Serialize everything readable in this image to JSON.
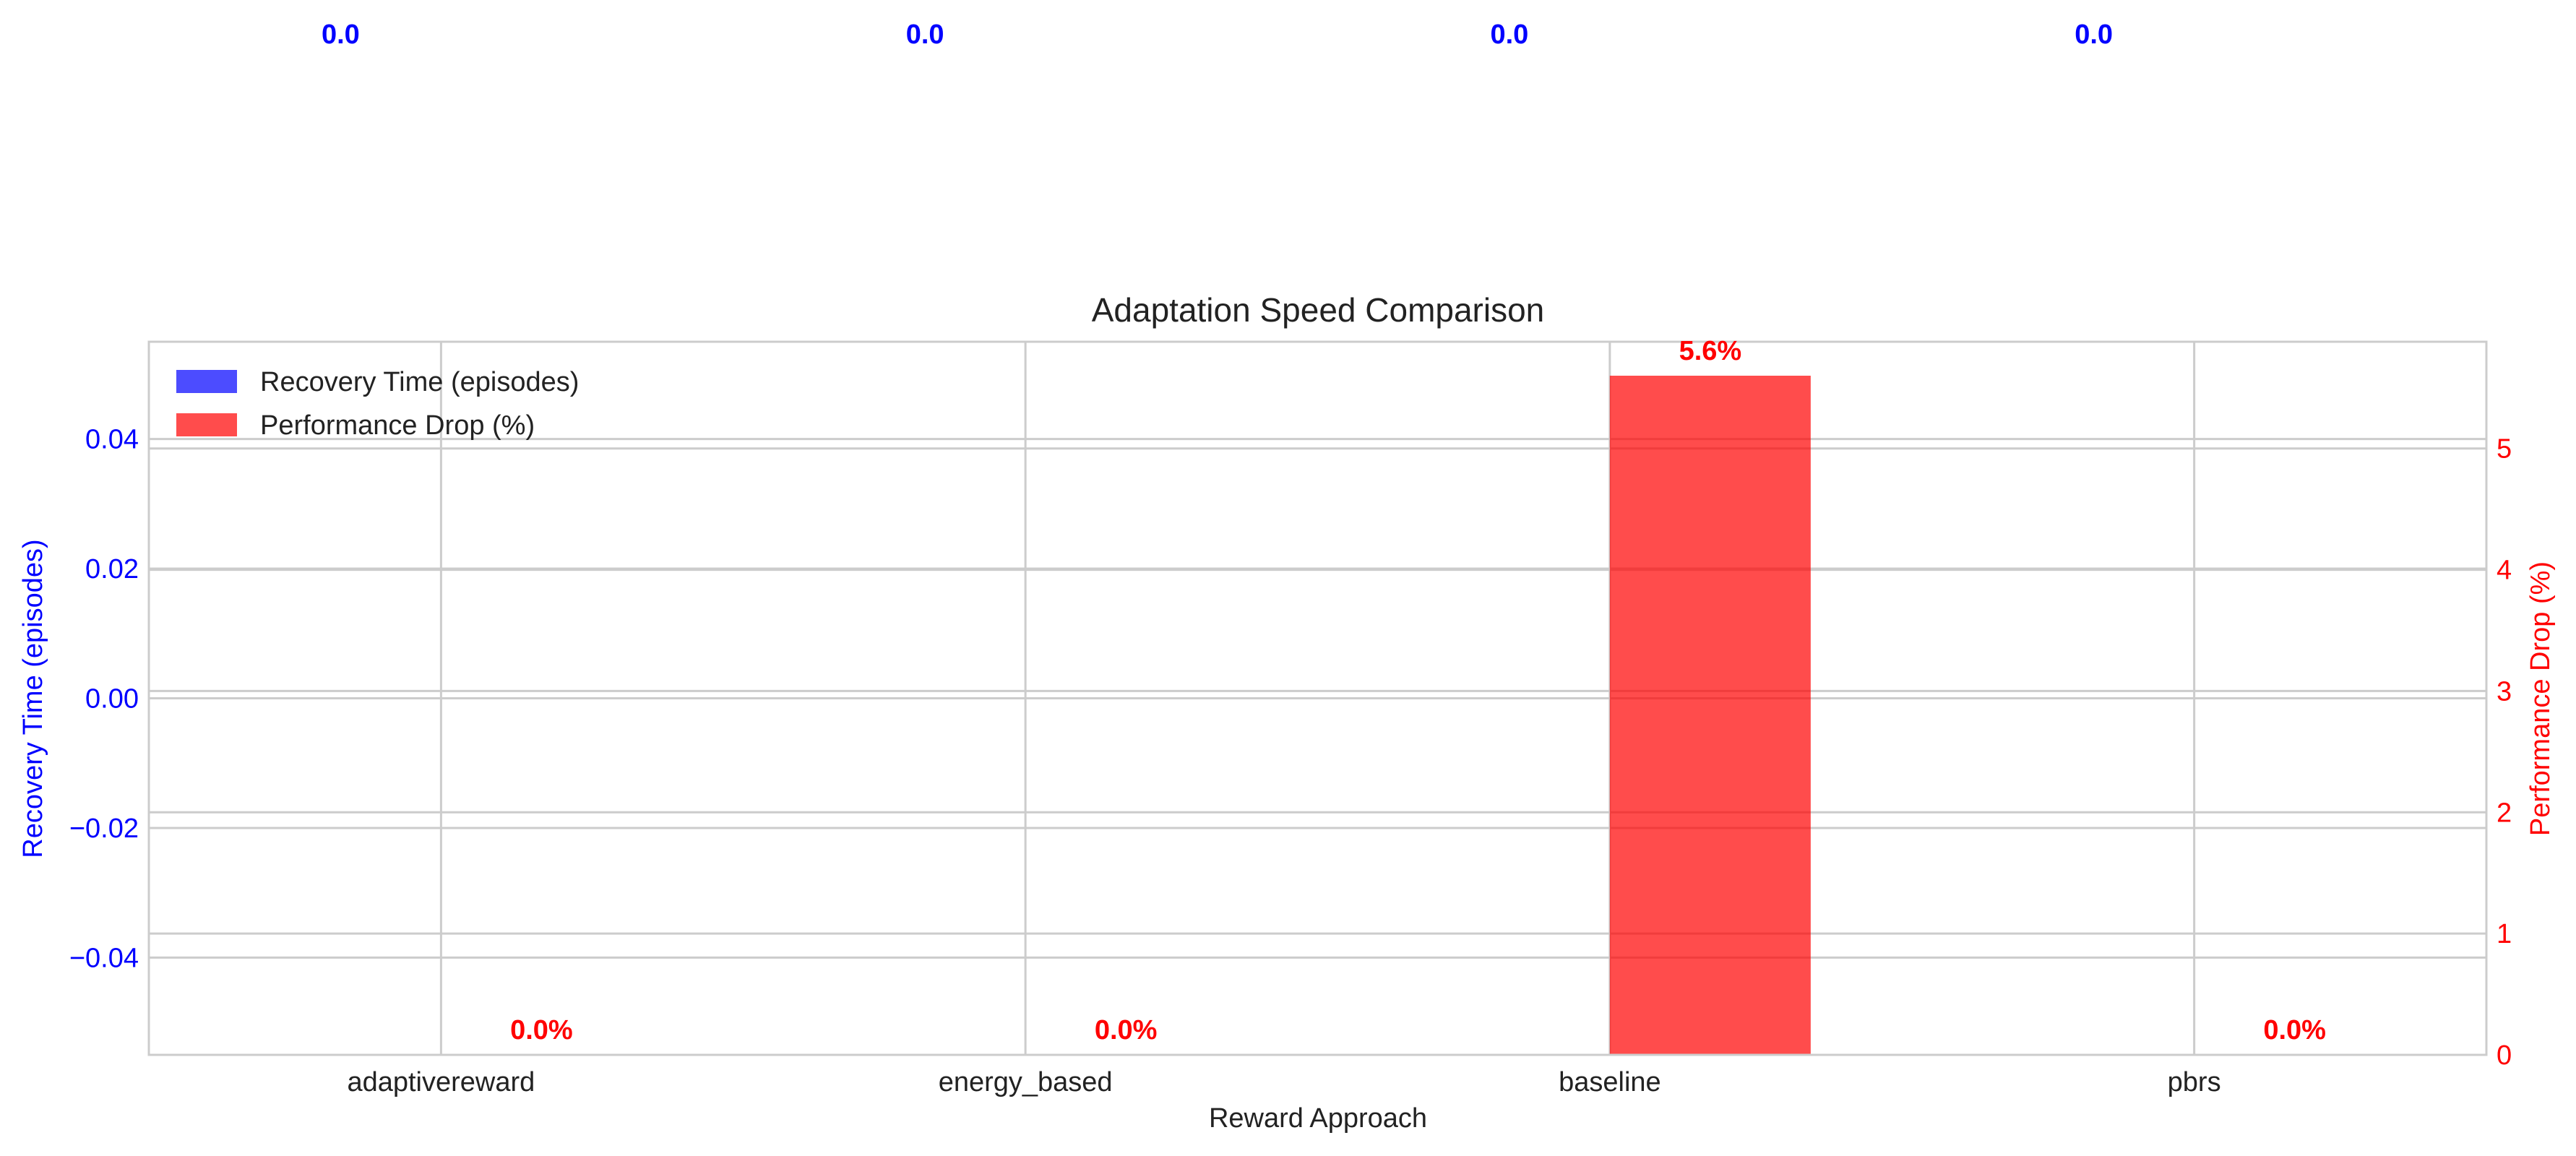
{
  "chart_data": {
    "type": "bar",
    "title": "Adaptation Speed Comparison",
    "xlabel": "Reward Approach",
    "categories": [
      "adaptivereward",
      "energy_based",
      "baseline",
      "pbrs"
    ],
    "series": [
      {
        "name": "Recovery Time (episodes)",
        "axis": "left",
        "color": "#0000ff",
        "values": [
          0.0,
          0.0,
          0.0,
          0.0
        ],
        "labels": [
          "0.0",
          "0.0",
          "0.0",
          "0.0"
        ]
      },
      {
        "name": "Performance Drop (%)",
        "axis": "right",
        "color": "#ff0000",
        "values": [
          0.0,
          0.0,
          5.6,
          0.0
        ],
        "labels": [
          "0.0%",
          "0.0%",
          "5.6%",
          "0.0%"
        ]
      }
    ],
    "y_left": {
      "label": "Recovery Time (episodes)",
      "lim": [
        -0.055,
        0.055
      ],
      "ticks": [
        -0.04,
        -0.02,
        0.0,
        0.02,
        0.04
      ],
      "tick_labels": [
        "−0.04",
        "−0.02",
        "0.00",
        "0.02",
        "0.04"
      ],
      "color": "#0000ff"
    },
    "y_right": {
      "label": "Performance Drop (%)",
      "lim": [
        0,
        5.88
      ],
      "ticks": [
        0,
        1,
        2,
        3,
        4,
        5
      ],
      "tick_labels": [
        "0",
        "1",
        "2",
        "3",
        "4",
        "5"
      ],
      "color": "#ff0000"
    },
    "grid": true,
    "legend_position": "top-left",
    "bar_alpha": 0.7
  }
}
